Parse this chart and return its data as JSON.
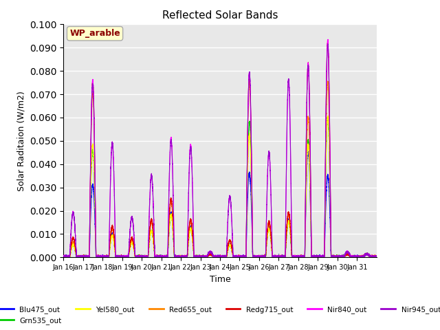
{
  "title": "Reflected Solar Bands",
  "xlabel": "Time",
  "ylabel": "Solar Raditaion (W/m2)",
  "annotation": "WP_arable",
  "ylim": [
    0,
    0.1
  ],
  "yticks": [
    0.0,
    0.01,
    0.02,
    0.03,
    0.04,
    0.05,
    0.06,
    0.07,
    0.08,
    0.09,
    0.1
  ],
  "xtick_labels": [
    "Jan 16",
    "Jan 17",
    "Jan 18",
    "Jan 19",
    "Jan 20",
    "Jan 21",
    "Jan 22",
    "Jan 23",
    "Jan 24",
    "Jan 25",
    "Jan 26",
    "Jan 27",
    "Jan 28",
    "Jan 29",
    "Jan 30",
    "Jan 31"
  ],
  "series": [
    {
      "label": "Blu475_out",
      "color": "#0000ff"
    },
    {
      "label": "Grn535_out",
      "color": "#00cc00"
    },
    {
      "label": "Yel580_out",
      "color": "#ffff00"
    },
    {
      "label": "Red655_out",
      "color": "#ff8800"
    },
    {
      "label": "Redg715_out",
      "color": "#dd0000"
    },
    {
      "label": "Nir840_out",
      "color": "#ff00ff"
    },
    {
      "label": "Nir945_out",
      "color": "#9900cc"
    }
  ],
  "background_color": "#e8e8e8",
  "grid_color": "#ffffff",
  "n_points": 1440,
  "n_days": 16,
  "nir840_peaks": [
    0.019,
    0.076,
    0.049,
    0.017,
    0.035,
    0.051,
    0.048,
    0.002,
    0.026,
    0.079,
    0.045,
    0.076,
    0.083,
    0.093,
    0.002,
    0.001
  ],
  "blu_peaks": [
    0.005,
    0.031,
    0.01,
    0.007,
    0.011,
    0.019,
    0.013,
    0.001,
    0.005,
    0.036,
    0.013,
    0.016,
    0.045,
    0.035,
    0.001,
    0.001
  ],
  "grn_peaks": [
    0.005,
    0.046,
    0.009,
    0.006,
    0.011,
    0.018,
    0.012,
    0.001,
    0.005,
    0.058,
    0.012,
    0.015,
    0.05,
    0.06,
    0.001,
    0.001
  ],
  "yel_peaks": [
    0.005,
    0.048,
    0.009,
    0.006,
    0.011,
    0.018,
    0.012,
    0.001,
    0.005,
    0.052,
    0.012,
    0.015,
    0.048,
    0.06,
    0.001,
    0.001
  ],
  "red_peaks": [
    0.006,
    0.07,
    0.012,
    0.007,
    0.015,
    0.024,
    0.015,
    0.001,
    0.007,
    0.075,
    0.014,
    0.018,
    0.06,
    0.075,
    0.001,
    0.001
  ],
  "redg_peaks": [
    0.008,
    0.075,
    0.013,
    0.008,
    0.016,
    0.025,
    0.016,
    0.001,
    0.007,
    0.078,
    0.015,
    0.019,
    0.083,
    0.092,
    0.001,
    0.001
  ],
  "nir945_peaks": [
    0.019,
    0.074,
    0.049,
    0.017,
    0.035,
    0.05,
    0.047,
    0.002,
    0.026,
    0.079,
    0.045,
    0.076,
    0.082,
    0.091,
    0.002,
    0.001
  ]
}
